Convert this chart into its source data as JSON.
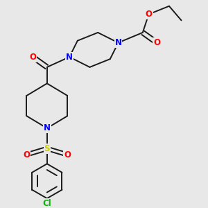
{
  "background_color": "#e8e8e8",
  "bond_color": "#1a1a1a",
  "atom_colors": {
    "N": "#0000ff",
    "O": "#ff0000",
    "S": "#cccc00",
    "Cl": "#00bb00",
    "C": "#1a1a1a"
  },
  "fig_size": [
    3.0,
    3.0
  ],
  "dpi": 100,
  "lw": 1.4,
  "fs": 8.5
}
